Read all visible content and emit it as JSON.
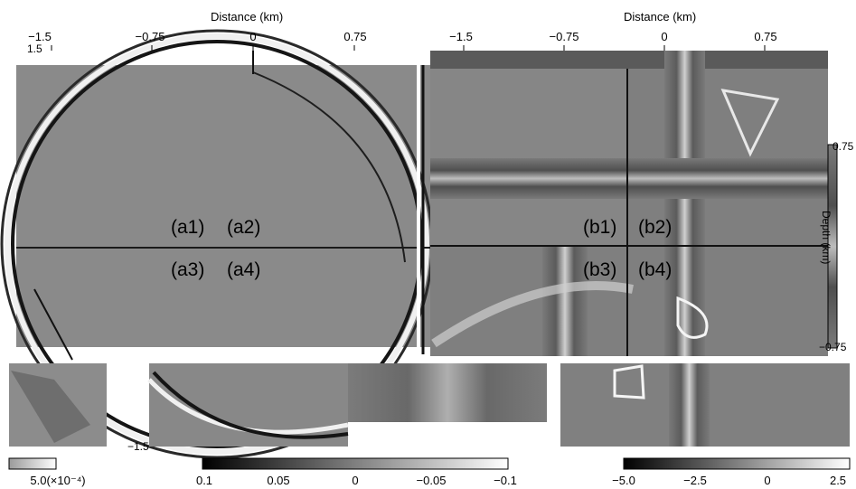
{
  "figure": {
    "left_axis": {
      "title": "Distance (km)",
      "ticks": [
        "−1.5",
        "−0.75",
        "0",
        "0.75"
      ],
      "depth_ticks": [
        "1.5",
        "−1.5"
      ]
    },
    "right_axis": {
      "title": "Distance (km)",
      "ticks": [
        "−1.5",
        "−0.75",
        "0",
        "0.75"
      ],
      "depth_label": "Depth (km)",
      "depth_ticks": [
        "0.75",
        "−0.75"
      ]
    },
    "panel_labels": [
      "(a1)",
      "(a2)",
      "(a3)",
      "(a4)",
      "(b1)",
      "(b2)",
      "(b3)",
      "(b4)"
    ],
    "colorbars": [
      {
        "ticks": [
          "5.0(×10⁻⁴)"
        ]
      },
      {
        "ticks": [
          "0.1",
          "0.05",
          "0",
          "−0.05",
          "−0.1"
        ]
      },
      {
        "ticks": [
          "−5.0",
          "−2.5",
          "0",
          "2.5"
        ]
      }
    ]
  }
}
